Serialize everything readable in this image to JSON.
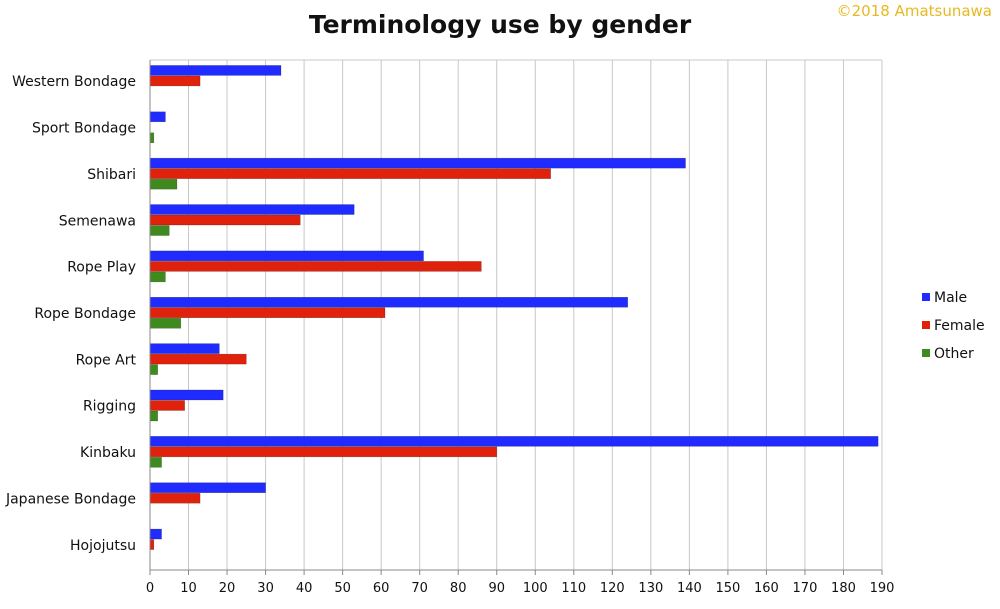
{
  "copyright": "©2018 Amatsunawa",
  "colors": {
    "copyright": "#e8b820",
    "grid": "#c8c8c8",
    "axis": "#888888",
    "text": "#111111"
  },
  "chart_data": {
    "type": "bar",
    "orientation": "horizontal",
    "title": "Terminology use by gender",
    "xlabel": "",
    "ylabel": "",
    "xlim": [
      0,
      190
    ],
    "x_ticks": [
      0,
      10,
      20,
      30,
      40,
      50,
      60,
      70,
      80,
      90,
      100,
      110,
      120,
      130,
      140,
      150,
      160,
      170,
      180,
      190
    ],
    "grid": "vertical",
    "legend_position": "right",
    "categories": [
      "Western Bondage",
      "Sport Bondage",
      "Shibari",
      "Semenawa",
      "Rope Play",
      "Rope Bondage",
      "Rope Art",
      "Rigging",
      "Kinbaku",
      "Japanese Bondage",
      "Hojojutsu"
    ],
    "series": [
      {
        "name": "Male",
        "color": "#1f2bff",
        "values": [
          34,
          4,
          139,
          53,
          71,
          124,
          18,
          19,
          189,
          30,
          3
        ]
      },
      {
        "name": "Female",
        "color": "#e0220c",
        "values": [
          13,
          0,
          104,
          39,
          86,
          61,
          25,
          9,
          90,
          13,
          1
        ]
      },
      {
        "name": "Other",
        "color": "#3f8a1e",
        "values": [
          0,
          1,
          7,
          5,
          4,
          8,
          2,
          2,
          3,
          0,
          0
        ]
      }
    ]
  }
}
